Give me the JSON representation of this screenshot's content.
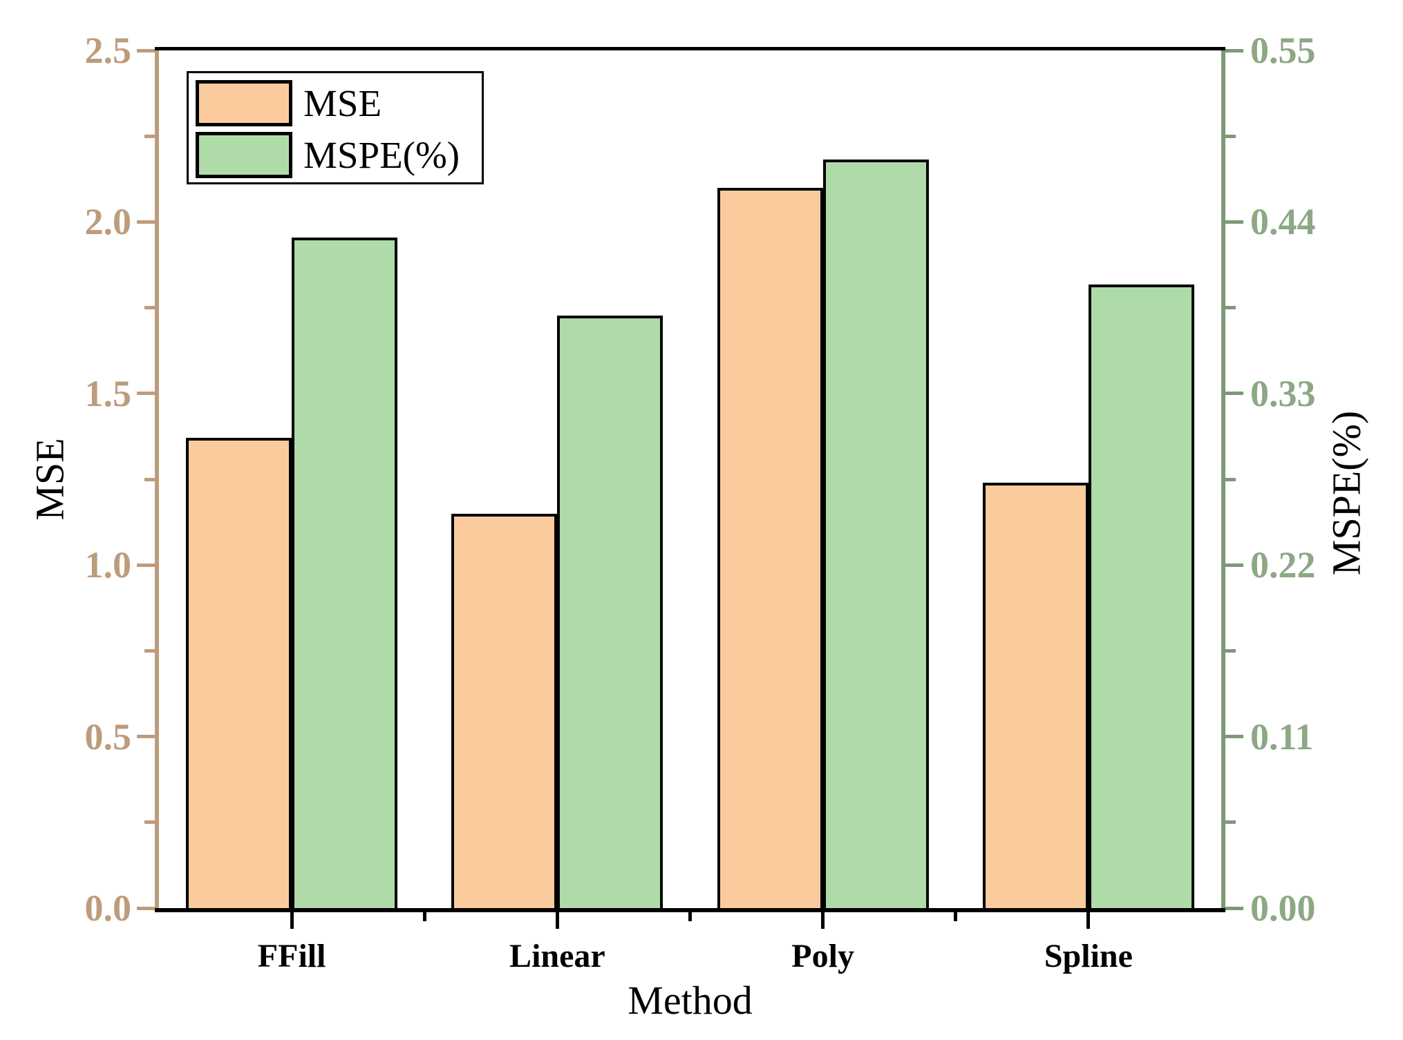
{
  "figure": {
    "x_axis_title": "Method",
    "left_axis_title": "MSE",
    "right_axis_title": "MSPE(%)"
  },
  "chart_data": {
    "type": "bar",
    "title": "",
    "xlabel": "Method",
    "ylabel_left": "MSE",
    "ylabel_right": "MSPE(%)",
    "categories": [
      "FFill",
      "Linear",
      "Poly",
      "Spline"
    ],
    "series": [
      {
        "name": "MSE",
        "axis": "left",
        "color": "#FACC9D",
        "edge_color": "#000000",
        "values": [
          1.37,
          1.15,
          2.1,
          1.24
        ]
      },
      {
        "name": "MSPE(%)",
        "axis": "right",
        "color": "#AFDBA9",
        "edge_color": "#000000",
        "values": [
          0.43,
          0.38,
          0.48,
          0.4
        ]
      }
    ],
    "left_axis": {
      "min": 0.0,
      "max": 2.5,
      "tick_labels": [
        "0.0",
        "0.5",
        "1.0",
        "1.5",
        "2.0",
        "2.5"
      ],
      "minor_step": 0.25,
      "label_color": "#BD9C7C",
      "line_color": "#BD9C7C"
    },
    "right_axis": {
      "min": 0.0,
      "max": 0.55,
      "tick_labels": [
        "0.00",
        "0.11",
        "0.22",
        "0.33",
        "0.44",
        "0.55"
      ],
      "minor_step": 0.055,
      "label_color": "#8CA884",
      "line_color": "#7C9A75"
    },
    "x_axis": {
      "line_color": "#000000",
      "label_color": "#000000"
    },
    "grid": false,
    "legend_position": "top-left",
    "legend_entries": [
      "MSE",
      "MSPE(%)"
    ]
  },
  "colors": {
    "background": "#ffffff",
    "bar_edge": "#000000",
    "top_spine": "#000000",
    "bottom_spine": "#000000"
  }
}
